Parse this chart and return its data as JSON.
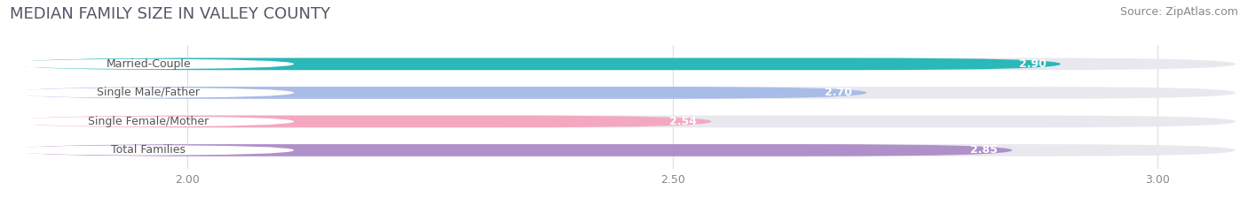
{
  "title": "MEDIAN FAMILY SIZE IN VALLEY COUNTY",
  "source": "Source: ZipAtlas.com",
  "categories": [
    "Married-Couple",
    "Single Male/Father",
    "Single Female/Mother",
    "Total Families"
  ],
  "values": [
    2.9,
    2.7,
    2.54,
    2.85
  ],
  "bar_colors": [
    "#2ab8b8",
    "#a8bce8",
    "#f4a8c0",
    "#b090c8"
  ],
  "value_labels": [
    "2.90",
    "2.70",
    "2.54",
    "2.85"
  ],
  "value_label_colors": [
    "white",
    "white",
    "white",
    "white"
  ],
  "xmin": 1.82,
  "xmax": 3.08,
  "xticks": [
    2.0,
    2.5,
    3.0
  ],
  "xtick_labels": [
    "2.00",
    "2.50",
    "3.00"
  ],
  "title_fontsize": 13,
  "source_fontsize": 9,
  "label_fontsize": 9,
  "value_fontsize": 9,
  "bar_height": 0.42,
  "bg_bar_color": "#e8e8ee",
  "background_color": "#ffffff",
  "grid_color": "#dddddd",
  "label_bg_color": "#ffffff",
  "label_text_color": "#555555"
}
